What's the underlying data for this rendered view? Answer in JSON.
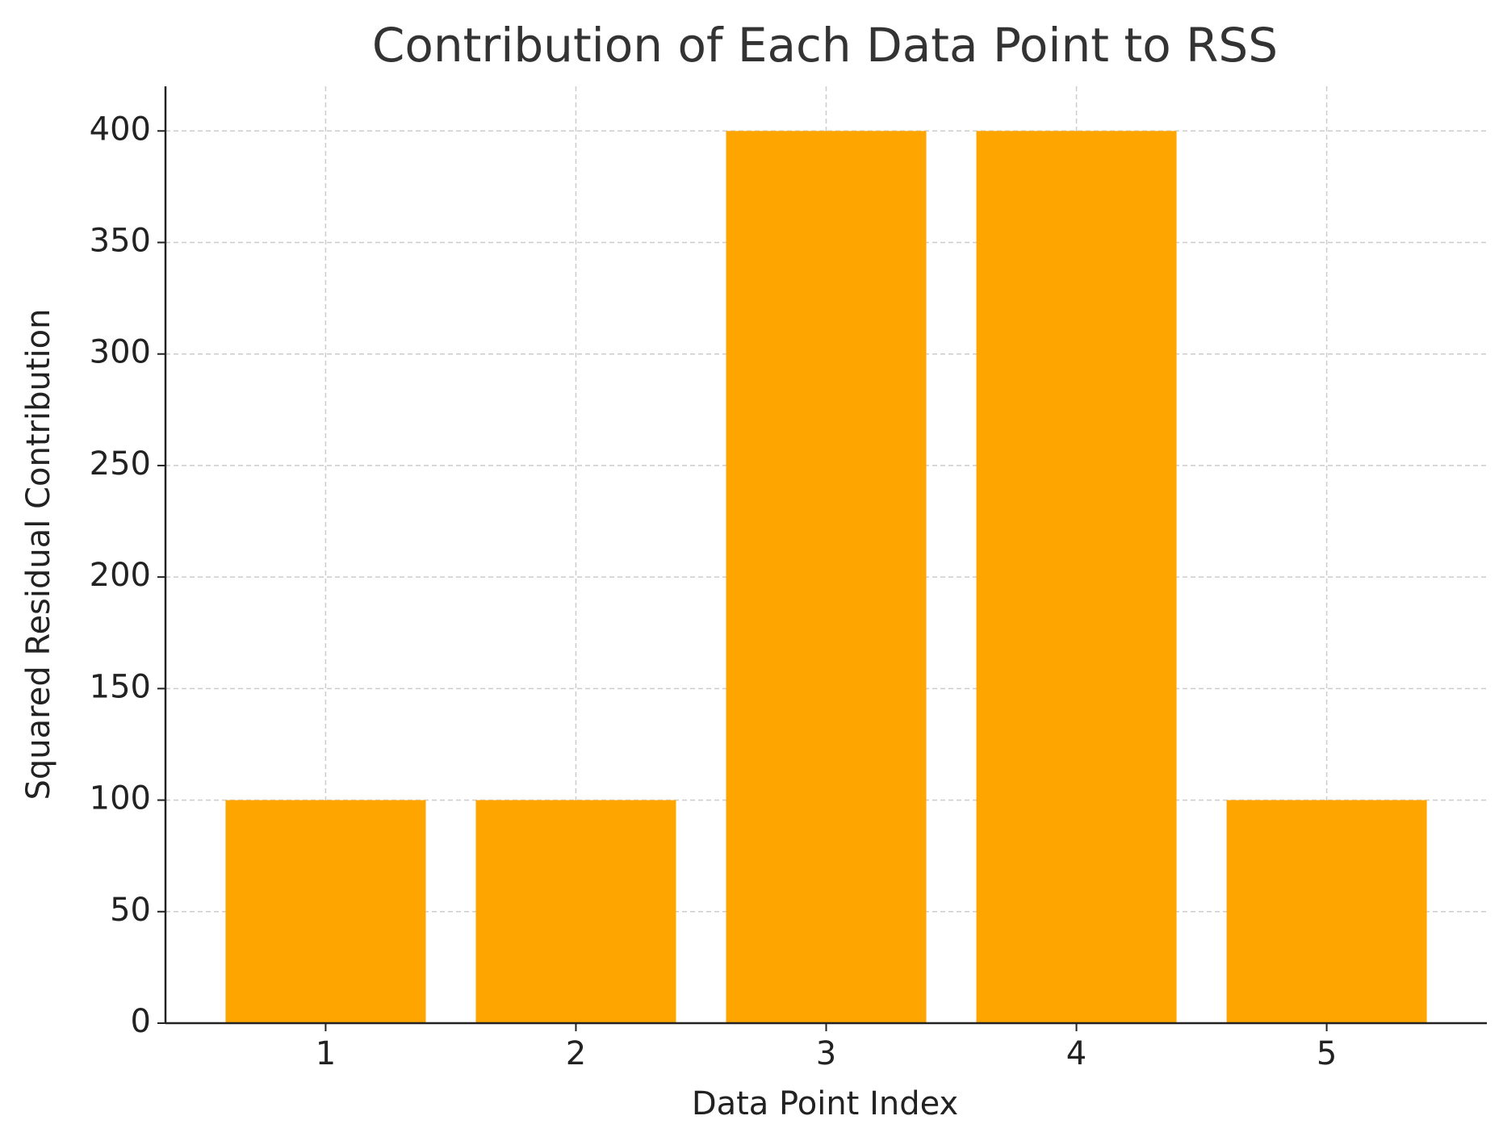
{
  "chart_data": {
    "type": "bar",
    "title": "Contribution of Each Data Point to RSS",
    "x_label": "Data Point Index",
    "y_label": "Squared Residual Contribution",
    "categories": [
      "1",
      "2",
      "3",
      "4",
      "5"
    ],
    "values": [
      100,
      100,
      400,
      400,
      100
    ],
    "color": "#ffa500",
    "ylim": [
      0,
      420
    ],
    "yticks": [
      0,
      50,
      100,
      150,
      200,
      250,
      300,
      350,
      400
    ],
    "grid": true
  }
}
